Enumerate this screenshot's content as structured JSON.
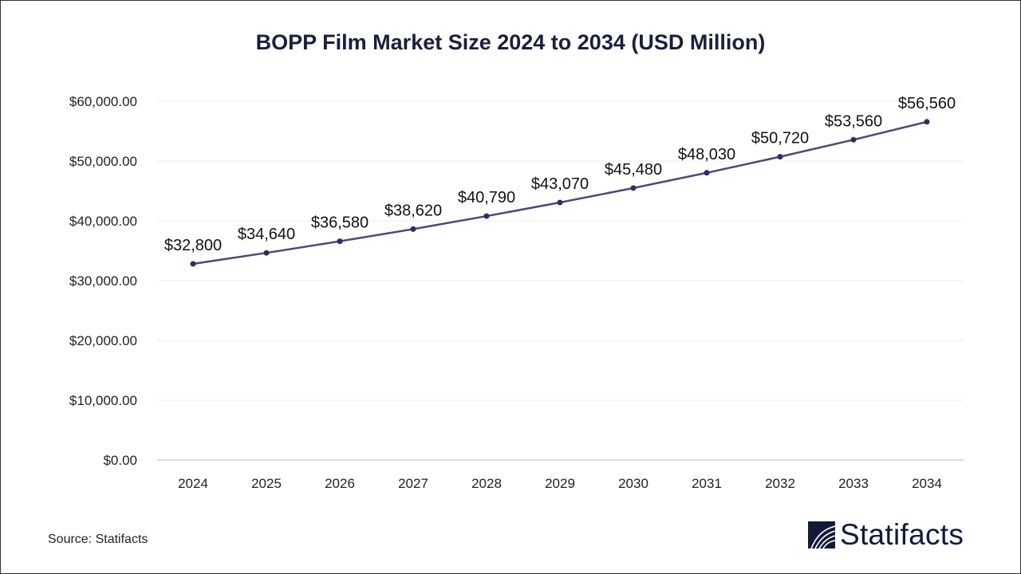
{
  "chart_data": {
    "type": "line",
    "title": "BOPP Film Market Size 2024 to 2034 (USD Million)",
    "xlabel": "",
    "ylabel": "",
    "categories": [
      "2024",
      "2025",
      "2026",
      "2027",
      "2028",
      "2029",
      "2030",
      "2031",
      "2032",
      "2033",
      "2034"
    ],
    "values": [
      32800,
      34640,
      36580,
      38620,
      40790,
      43070,
      45480,
      48030,
      50720,
      53560,
      56560
    ],
    "data_labels": [
      "$32,800",
      "$34,640",
      "$36,580",
      "$38,620",
      "$40,790",
      "$43,070",
      "$45,480",
      "$48,030",
      "$50,720",
      "$53,560",
      "$56,560"
    ],
    "y_ticks": [
      0,
      10000,
      20000,
      30000,
      40000,
      50000,
      60000
    ],
    "y_tick_labels": [
      "$0.00",
      "$10,000.00",
      "$20,000.00",
      "$30,000.00",
      "$40,000.00",
      "$50,000.00",
      "$60,000.00"
    ],
    "ylim": [
      0,
      60000
    ],
    "grid": true,
    "legend": "none",
    "line_color": "#4a4a7c",
    "marker_color": "#2e2e5e"
  },
  "footer": {
    "source": "Source: Statifacts",
    "brand": "Statifacts"
  }
}
